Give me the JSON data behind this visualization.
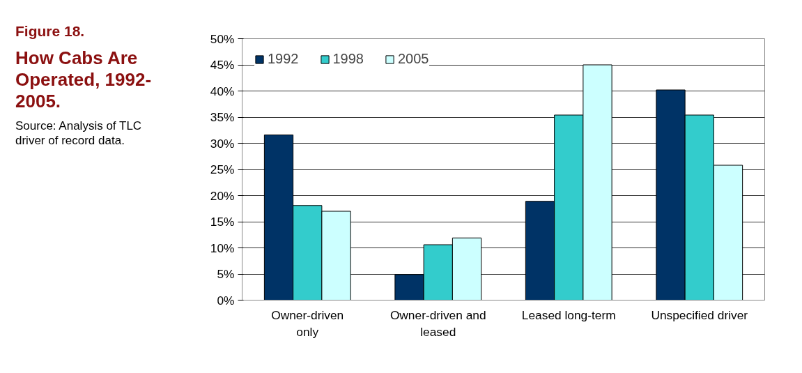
{
  "chart_data": {
    "type": "bar",
    "title": "Figure 18.",
    "subtitle": "How Cabs Are Operated, 1992-2005.",
    "annotations": [
      "Source: Analysis of TLC driver of record data."
    ],
    "categories": [
      "Owner-driven\nonly",
      "Owner-driven and\nleased",
      "Leased long-term",
      "Unspecified driver"
    ],
    "series": [
      {
        "name": "1992",
        "color": "#003366",
        "values": [
          31.6,
          4.9,
          18.9,
          40.2
        ]
      },
      {
        "name": "1998",
        "color": "#33cccc",
        "values": [
          18.1,
          10.6,
          35.4,
          35.4
        ]
      },
      {
        "name": "2005",
        "color": "#ccffff",
        "values": [
          17.0,
          11.9,
          45.0,
          25.8
        ]
      }
    ],
    "ylim": [
      0,
      50
    ],
    "yticks": [
      {
        "value": 0,
        "label": "0%"
      },
      {
        "value": 5,
        "label": "5%"
      },
      {
        "value": 10,
        "label": "10%"
      },
      {
        "value": 15,
        "label": "15%"
      },
      {
        "value": 20,
        "label": "20%"
      },
      {
        "value": 25,
        "label": "25%"
      },
      {
        "value": 30,
        "label": "30%"
      },
      {
        "value": 35,
        "label": "35%"
      },
      {
        "value": 40,
        "label": "40%"
      },
      {
        "value": 45,
        "label": "45%"
      },
      {
        "value": 50,
        "label": "50%"
      }
    ],
    "grid": "y",
    "legend": "top left"
  }
}
